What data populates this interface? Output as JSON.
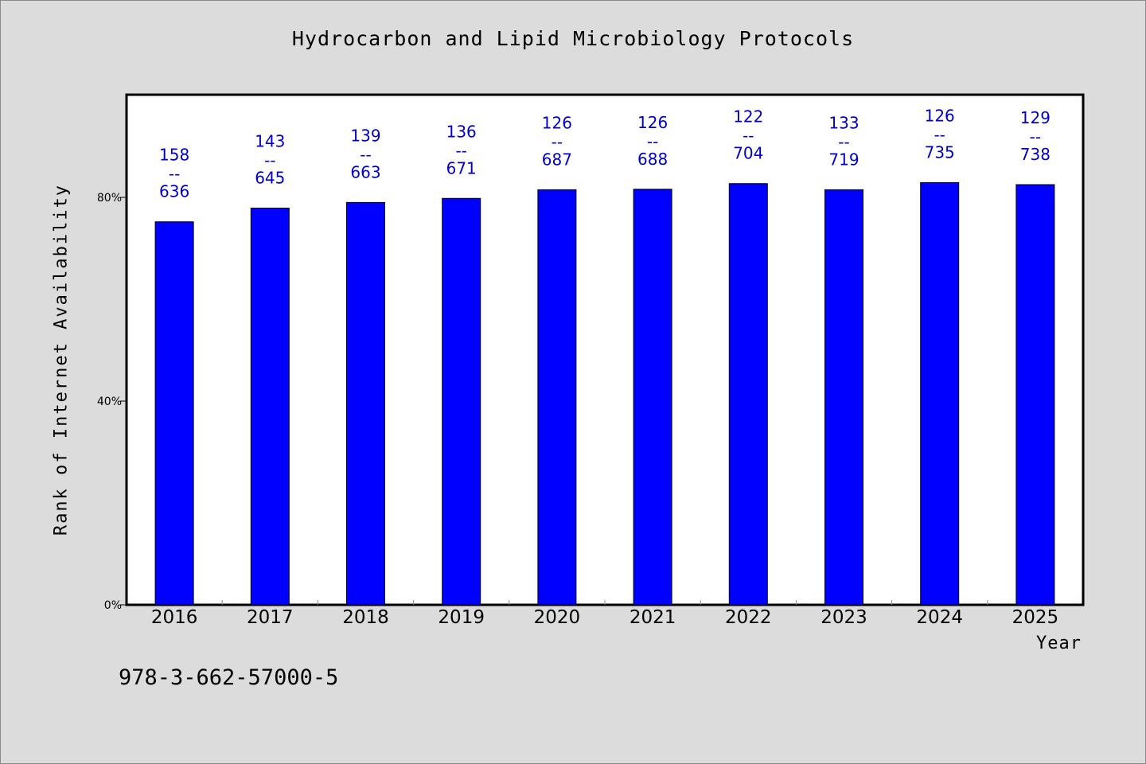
{
  "title": "Hydrocarbon and Lipid Microbiology Protocols",
  "isbn": "978-3-662-57000-5",
  "colors": {
    "background": "#dcdcdc",
    "plot_background": "#ffffff",
    "bar": "#0000ff",
    "data_label": "#0000c8"
  },
  "chart_data": {
    "type": "bar",
    "title": "Hydrocarbon and Lipid Microbiology Protocols",
    "xlabel": "Year",
    "ylabel": "Rank of Internet Availability",
    "ylim": [
      0,
      100
    ],
    "yticks": [
      {
        "value": 0,
        "label": "0%"
      },
      {
        "value": 40,
        "label": "40%"
      },
      {
        "value": 80,
        "label": "80%"
      }
    ],
    "grid": false,
    "categories": [
      "2016",
      "2017",
      "2018",
      "2019",
      "2020",
      "2021",
      "2022",
      "2023",
      "2024",
      "2025"
    ],
    "values": [
      75.2,
      77.9,
      79.0,
      79.8,
      81.5,
      81.6,
      82.7,
      81.5,
      82.9,
      82.5
    ],
    "annotations": [
      {
        "top": "158",
        "sep": "--",
        "bottom": "636"
      },
      {
        "top": "143",
        "sep": "--",
        "bottom": "645"
      },
      {
        "top": "139",
        "sep": "--",
        "bottom": "663"
      },
      {
        "top": "136",
        "sep": "--",
        "bottom": "671"
      },
      {
        "top": "126",
        "sep": "--",
        "bottom": "687"
      },
      {
        "top": "126",
        "sep": "--",
        "bottom": "688"
      },
      {
        "top": "122",
        "sep": "--",
        "bottom": "704"
      },
      {
        "top": "133",
        "sep": "--",
        "bottom": "719"
      },
      {
        "top": "126",
        "sep": "--",
        "bottom": "735"
      },
      {
        "top": "129",
        "sep": "--",
        "bottom": "738"
      }
    ]
  }
}
